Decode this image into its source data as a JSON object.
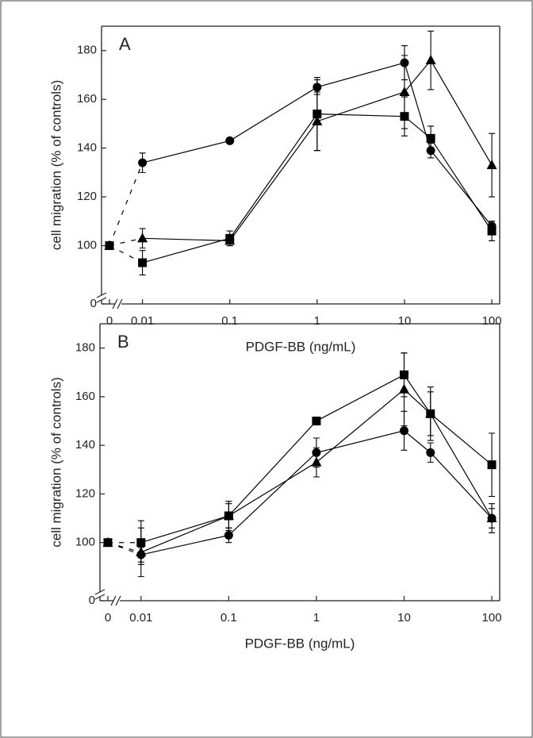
{
  "chart_data": [
    {
      "type": "line",
      "title": "A",
      "xlabel": "PDGF-BB (ng/mL)",
      "ylabel": "cell migration (% of controls)",
      "xscale": "log",
      "axis_break": true,
      "x": [
        0,
        0.01,
        0.1,
        1,
        10,
        20,
        100
      ],
      "xlim": [
        0.0034,
        123
      ],
      "xticks": [
        0,
        0.01,
        0.1,
        1,
        10,
        100
      ],
      "ylim": [
        80,
        190
      ],
      "yticks": [
        0,
        100,
        120,
        140,
        160,
        180
      ],
      "series": [
        {
          "marker": "circle",
          "color": "#000000",
          "values": [
            100,
            134,
            143,
            165,
            175,
            139,
            108
          ],
          "errors": [
            1,
            4,
            1,
            3,
            7,
            3,
            2
          ]
        },
        {
          "marker": "triangle",
          "color": "#000000",
          "values": [
            100,
            103,
            102,
            151,
            163,
            176,
            133
          ],
          "errors": [
            1,
            4,
            2,
            12,
            15,
            12,
            13
          ]
        },
        {
          "marker": "square",
          "color": "#000000",
          "values": [
            100,
            93,
            103,
            154,
            153,
            144,
            106
          ],
          "errors": [
            1,
            5,
            3,
            15,
            8,
            5,
            4
          ]
        }
      ]
    },
    {
      "type": "line",
      "title": "B",
      "xlabel": "PDGF-BB (ng/mL)",
      "ylabel": "cell migration (% of controls)",
      "xscale": "log",
      "axis_break": true,
      "x": [
        0,
        0.01,
        0.1,
        1,
        10,
        20,
        100
      ],
      "xlim": [
        0.0034,
        123
      ],
      "xticks": [
        0,
        0.01,
        0.1,
        1,
        10,
        100
      ],
      "ylim": [
        80,
        190
      ],
      "yticks": [
        0,
        100,
        120,
        140,
        160,
        180
      ],
      "series": [
        {
          "marker": "square",
          "color": "#000000",
          "values": [
            100,
            100,
            111,
            150,
            169,
            153,
            132
          ],
          "errors": [
            1,
            9,
            6,
            1,
            9,
            11,
            13
          ]
        },
        {
          "marker": "triangle",
          "color": "#000000",
          "values": [
            100,
            96,
            111,
            133,
            163,
            153,
            110
          ],
          "errors": [
            1,
            10,
            5,
            6,
            15,
            9,
            6
          ]
        },
        {
          "marker": "circle",
          "color": "#000000",
          "values": [
            100,
            95,
            103,
            137,
            146,
            137,
            110
          ],
          "errors": [
            1,
            3,
            3,
            6,
            8,
            4,
            4
          ]
        }
      ]
    }
  ]
}
